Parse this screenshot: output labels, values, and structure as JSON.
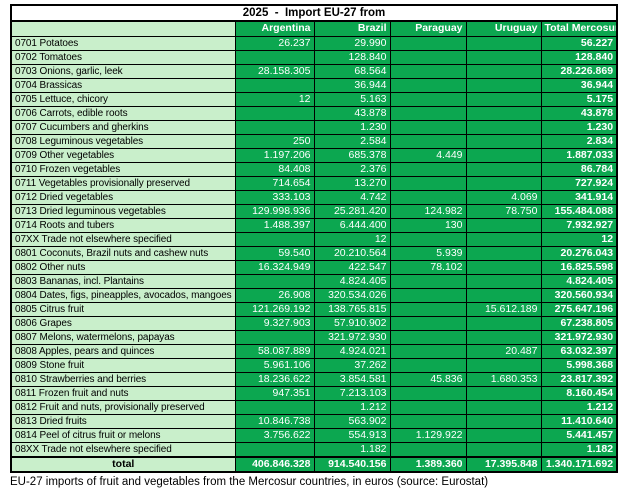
{
  "title": "2025  -  Import EU-27 from",
  "caption": "EU-27 imports of fruit and vegetables from the Mercosur countries, in euros (source: Eurostat)",
  "colors": {
    "cell_green": "#0ca750",
    "label_light_green": "#c9efcb",
    "header_text": "#ffffff",
    "border": "#000000"
  },
  "chart_data": {
    "type": "table",
    "columns": [
      "",
      "Argentina",
      "Brazil",
      "Paraguay",
      "Uruguay",
      "Total Mercosur"
    ],
    "rows": [
      {
        "label": "0701 Potatoes",
        "values": [
          "26.237",
          "29.990",
          "",
          "",
          "56.227"
        ]
      },
      {
        "label": "0702 Tomatoes",
        "values": [
          "",
          "128.840",
          "",
          "",
          "128.840"
        ]
      },
      {
        "label": "0703 Onions, garlic, leek",
        "values": [
          "28.158.305",
          "68.564",
          "",
          "",
          "28.226.869"
        ]
      },
      {
        "label": "0704 Brassicas",
        "values": [
          "",
          "36.944",
          "",
          "",
          "36.944"
        ]
      },
      {
        "label": "0705 Lettuce, chicory",
        "values": [
          "12",
          "5.163",
          "",
          "",
          "5.175"
        ]
      },
      {
        "label": "0706 Carrots, edible roots",
        "values": [
          "",
          "43.878",
          "",
          "",
          "43.878"
        ]
      },
      {
        "label": "0707 Cucumbers and gherkins",
        "values": [
          "",
          "1.230",
          "",
          "",
          "1.230"
        ]
      },
      {
        "label": "0708 Leguminous vegetables",
        "values": [
          "250",
          "2.584",
          "",
          "",
          "2.834"
        ]
      },
      {
        "label": "0709 Other vegetables",
        "values": [
          "1.197.206",
          "685.378",
          "4.449",
          "",
          "1.887.033"
        ]
      },
      {
        "label": "0710 Frozen vegetables",
        "values": [
          "84.408",
          "2.376",
          "",
          "",
          "86.784"
        ]
      },
      {
        "label": "0711 Vegetables provisionally preserved",
        "values": [
          "714.654",
          "13.270",
          "",
          "",
          "727.924"
        ]
      },
      {
        "label": "0712 Dried vegetables",
        "values": [
          "333.103",
          "4.742",
          "",
          "4.069",
          "341.914"
        ]
      },
      {
        "label": "0713 Dried leguminous vegetables",
        "values": [
          "129.998.936",
          "25.281.420",
          "124.982",
          "78.750",
          "155.484.088"
        ]
      },
      {
        "label": "0714 Roots and tubers",
        "values": [
          "1.488.397",
          "6.444.400",
          "130",
          "",
          "7.932.927"
        ]
      },
      {
        "label": "07XX Trade not elsewhere specified",
        "values": [
          "",
          "12",
          "",
          "",
          "12"
        ]
      },
      {
        "label": "0801 Coconuts, Brazil nuts and cashew nuts",
        "values": [
          "59.540",
          "20.210.564",
          "5.939",
          "",
          "20.276.043"
        ]
      },
      {
        "label": "0802 Other nuts",
        "values": [
          "16.324.949",
          "422.547",
          "78.102",
          "",
          "16.825.598"
        ]
      },
      {
        "label": "0803 Bananas, incl. Plantains",
        "values": [
          "",
          "4.824.405",
          "",
          "",
          "4.824.405"
        ]
      },
      {
        "label": "0804 Dates, figs, pineapples, avocados, mangoes",
        "values": [
          "26.908",
          "320.534.026",
          "",
          "",
          "320.560.934"
        ]
      },
      {
        "label": "0805 Citrus fruit",
        "values": [
          "121.269.192",
          "138.765.815",
          "",
          "15.612.189",
          "275.647.196"
        ]
      },
      {
        "label": "0806 Grapes",
        "values": [
          "9.327.903",
          "57.910.902",
          "",
          "",
          "67.238.805"
        ]
      },
      {
        "label": "0807 Melons, watermelons, papayas",
        "values": [
          "",
          "321.972.930",
          "",
          "",
          "321.972.930"
        ]
      },
      {
        "label": "0808 Apples, pears and quinces",
        "values": [
          "58.087.889",
          "4.924.021",
          "",
          "20.487",
          "63.032.397"
        ]
      },
      {
        "label": "0809 Stone fruit",
        "values": [
          "5.961.106",
          "37.262",
          "",
          "",
          "5.998.368"
        ]
      },
      {
        "label": "0810 Strawberries and berries",
        "values": [
          "18.236.622",
          "3.854.581",
          "45.836",
          "1.680.353",
          "23.817.392"
        ]
      },
      {
        "label": "0811 Frozen fruit and nuts",
        "values": [
          "947.351",
          "7.213.103",
          "",
          "",
          "8.160.454"
        ]
      },
      {
        "label": "0812 Fruit and nuts, provisionally preserved",
        "values": [
          "",
          "1.212",
          "",
          "",
          "1.212"
        ]
      },
      {
        "label": "0813 Dried fruits",
        "values": [
          "10.846.738",
          "563.902",
          "",
          "",
          "11.410.640"
        ]
      },
      {
        "label": "0814 Peel of citrus fruit or melons",
        "values": [
          "3.756.622",
          "554.913",
          "1.129.922",
          "",
          "5.441.457"
        ]
      },
      {
        "label": "08XX Trade not elsewhere specified",
        "values": [
          "",
          "1.182",
          "",
          "",
          "1.182"
        ]
      }
    ],
    "total": {
      "label": "total",
      "values": [
        "406.846.328",
        "914.540.156",
        "1.389.360",
        "17.395.848",
        "1.340.171.692"
      ]
    }
  }
}
